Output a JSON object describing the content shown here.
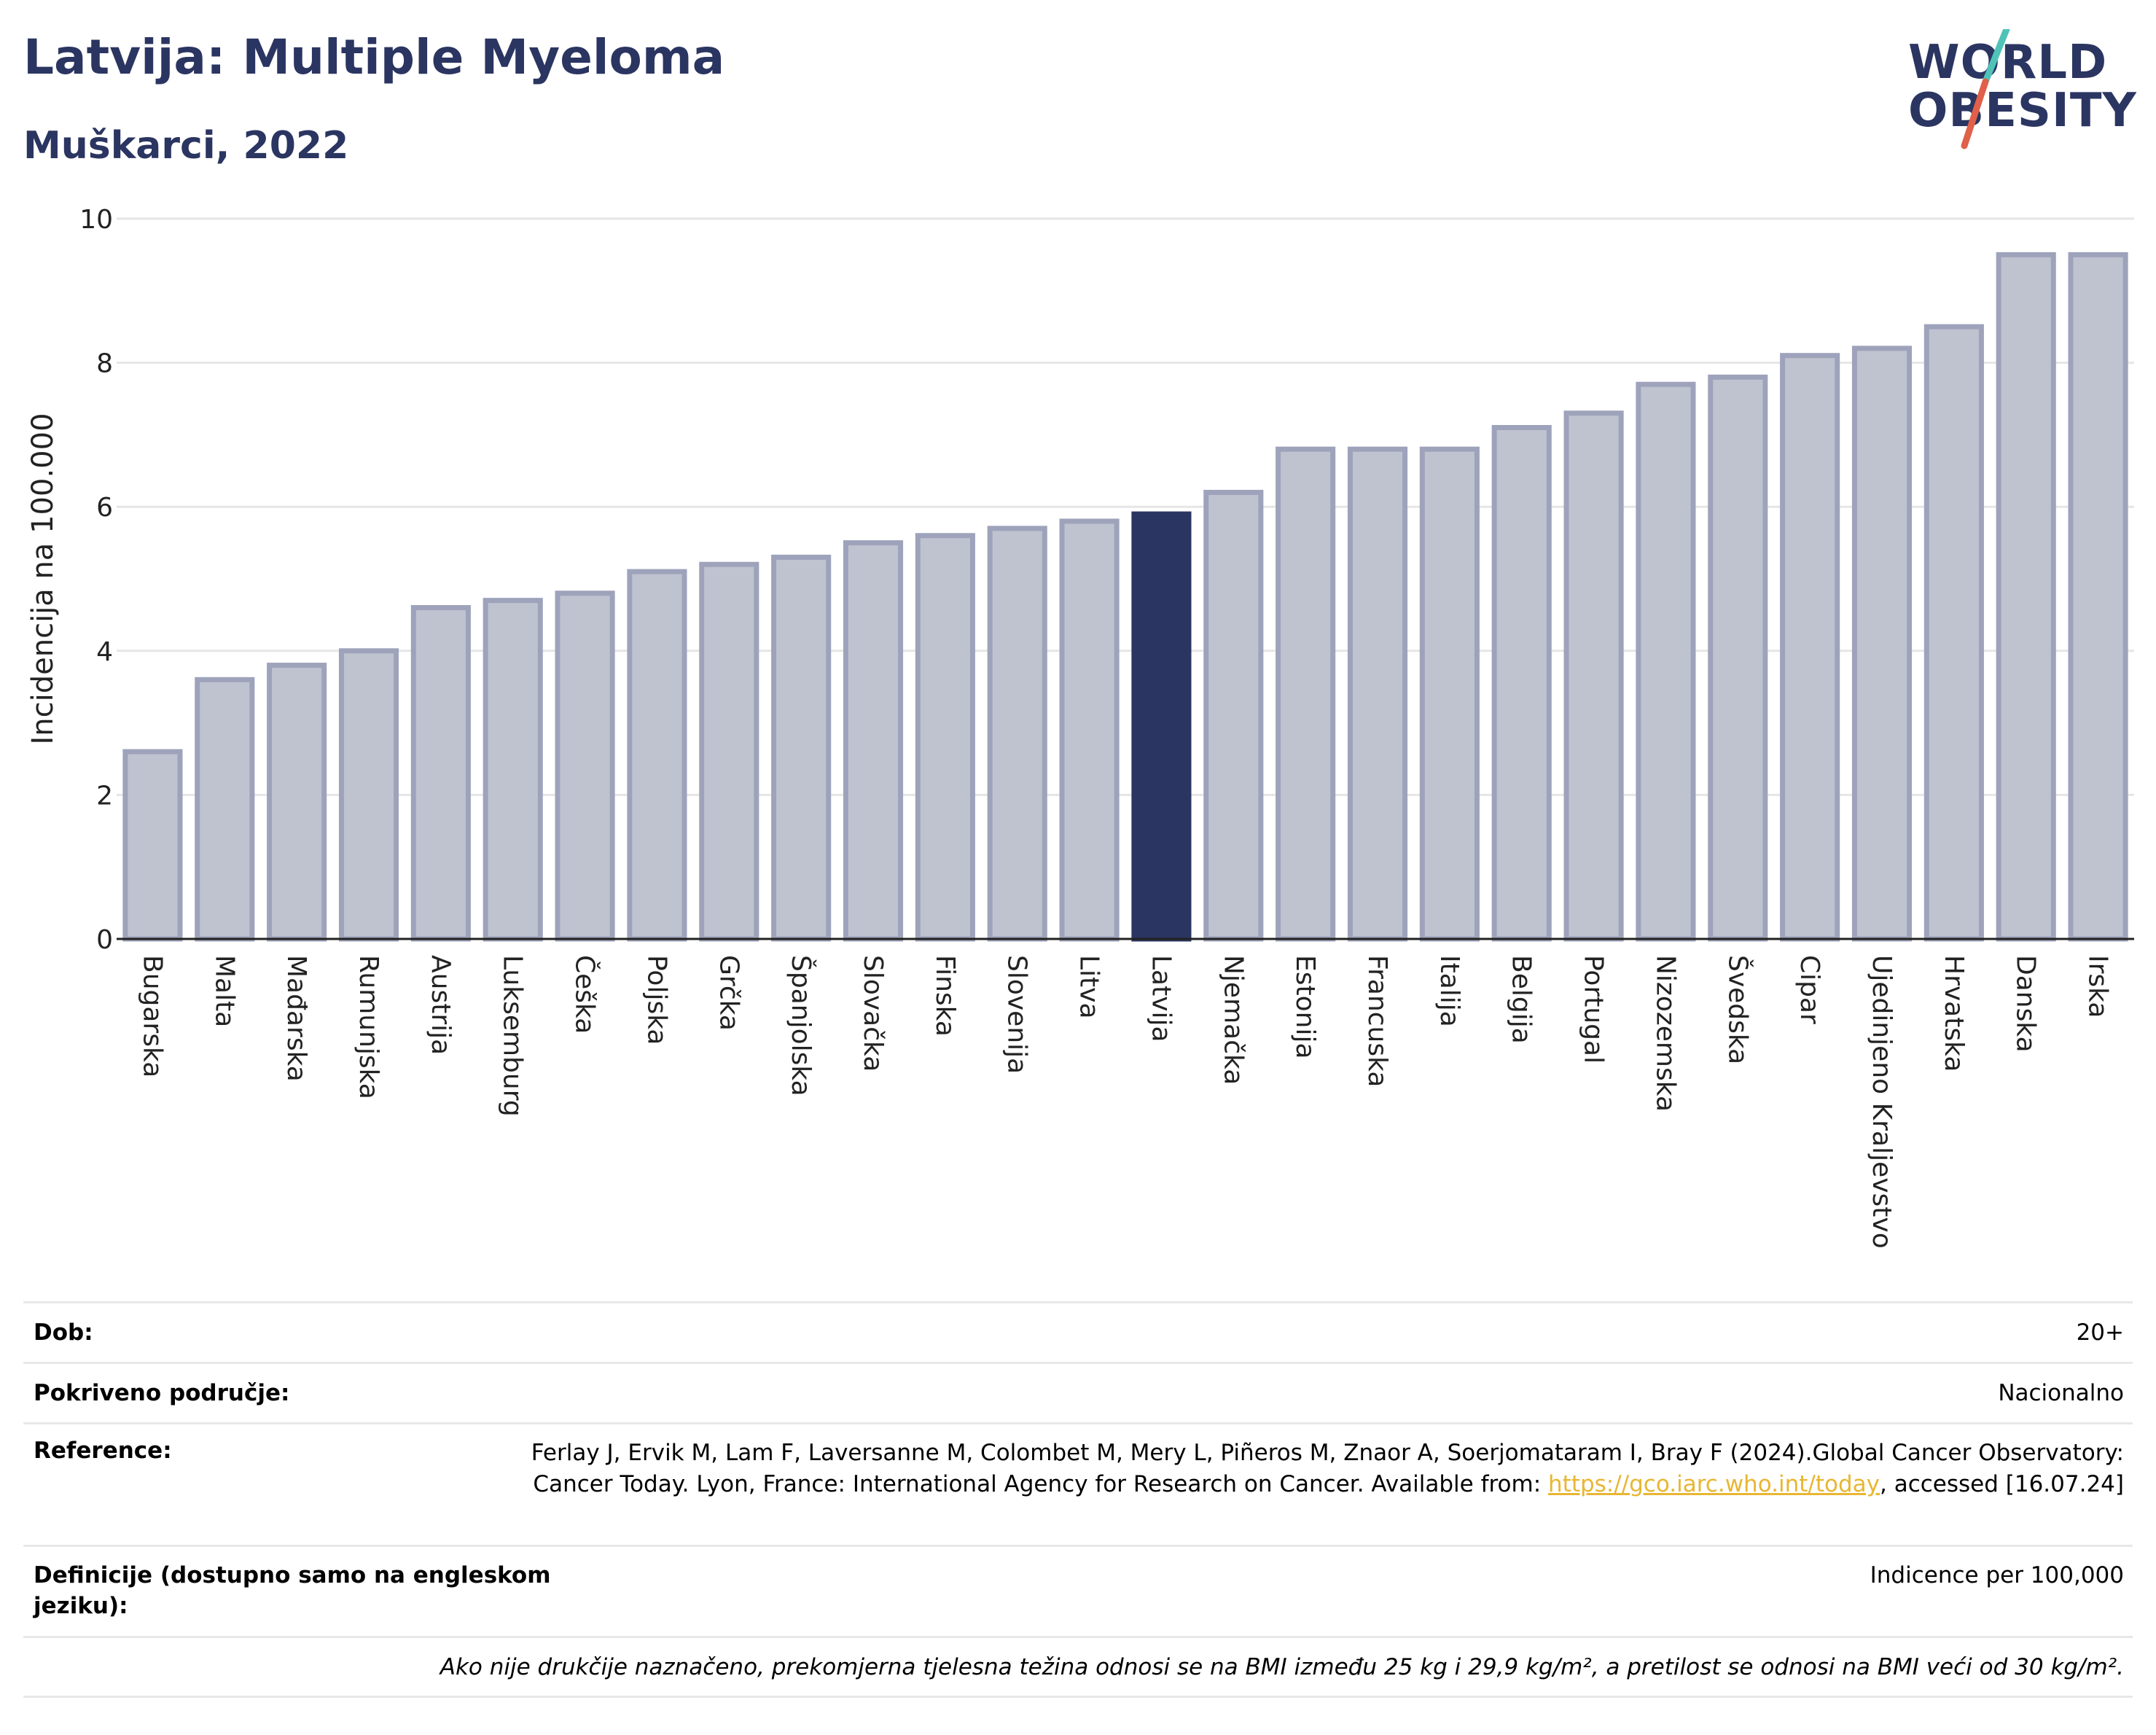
{
  "header": {
    "title": "Latvija: Multiple Myeloma",
    "subtitle": "Muškarci, 2022"
  },
  "logo": {
    "line1": "WORLD",
    "line2": "OBESITY",
    "text_color": "#2b3561",
    "slash_colors": [
      "#4fc3b8",
      "#e0604a"
    ]
  },
  "chart_data": {
    "type": "bar",
    "ylabel": "Incidencija na 100.000",
    "ylim": [
      0,
      10
    ],
    "yticks": [
      0,
      2,
      4,
      6,
      8,
      10
    ],
    "grid": true,
    "highlight": "Latvija",
    "colors": {
      "bar": "#bfc3d0",
      "bar_border": "#9ea3bb",
      "highlight": "#2b3561",
      "grid": "#e6e6e6"
    },
    "categories": [
      "Bugarska",
      "Malta",
      "Mađarska",
      "Rumunjska",
      "Austrija",
      "Luksemburg",
      "Češka",
      "Poljska",
      "Grčka",
      "Španjolska",
      "Slovačka",
      "Finska",
      "Slovenija",
      "Litva",
      "Latvija",
      "Njemačka",
      "Estonija",
      "Francuska",
      "Italija",
      "Belgija",
      "Portugal",
      "Nizozemska",
      "Švedska",
      "Cipar",
      "Ujedinjeno Kraljevstvo",
      "Hrvatska",
      "Danska",
      "Irska"
    ],
    "values": [
      2.6,
      3.6,
      3.8,
      4.0,
      4.6,
      4.7,
      4.8,
      5.1,
      5.2,
      5.3,
      5.5,
      5.6,
      5.7,
      5.8,
      5.9,
      6.2,
      6.8,
      6.8,
      6.8,
      7.1,
      7.3,
      7.7,
      7.8,
      8.1,
      8.2,
      8.5,
      9.5,
      9.5
    ]
  },
  "info": {
    "age_label": "Dob:",
    "age_value": "20+",
    "coverage_label": "Pokriveno područje:",
    "coverage_value": "Nacionalno",
    "reference_label": "Reference:",
    "reference_text": "Ferlay J, Ervik M, Lam F, Laversanne M, Colombet M, Mery L, Piñeros M, Znaor A, Soerjomataram I, Bray F (2024).Global Cancer Observatory: Cancer Today. Lyon, France: International Agency for Research on Cancer. Available from: ",
    "reference_link": "https://gco.iarc.who.int/today",
    "reference_suffix": ", accessed [16.07.24]",
    "definitions_label": "Definicije (dostupno samo na engleskom jeziku):",
    "definitions_value": "Indicence per 100,000",
    "note": "Ako nije drukčije naznačeno, prekomjerna tjelesna težina odnosi se na BMI između 25 kg i 29,9 kg/m², a pretilost se odnosi na BMI veći od 30 kg/m²."
  }
}
